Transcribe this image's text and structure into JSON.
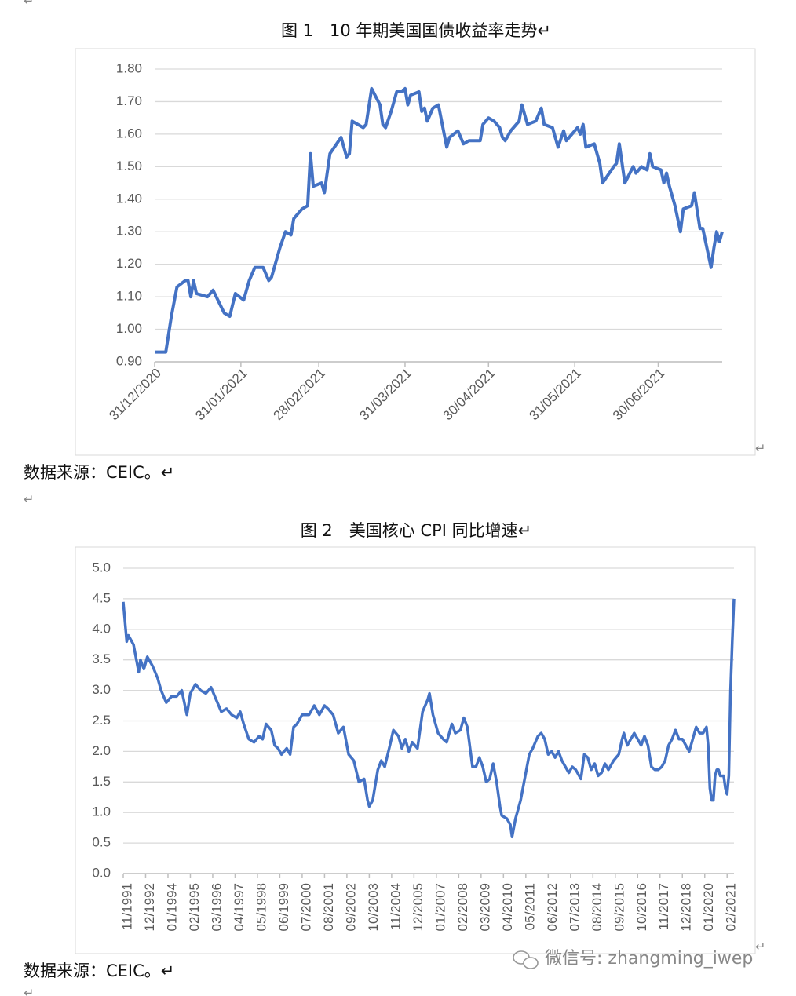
{
  "paragraph_marks": [
    "↵",
    "↵",
    "↵",
    "↵",
    "↵"
  ],
  "watermark": "微信号: zhangming_iwep",
  "chart_data": [
    {
      "type": "line",
      "title": "图 1　10 年期美国国债收益率走势↵",
      "source": "数据来源：CEIC。↵",
      "grid": true,
      "color": "#4472c4",
      "x": [
        "31/12/2020",
        "04/01/2021",
        "06/01/2021",
        "08/01/2021",
        "11/01/2021",
        "12/01/2021",
        "13/01/2021",
        "14/01/2021",
        "15/01/2021",
        "19/01/2021",
        "21/01/2021",
        "25/01/2021",
        "27/01/2021",
        "29/01/2021",
        "01/02/2021",
        "03/02/2021",
        "05/02/2021",
        "08/02/2021",
        "10/02/2021",
        "11/02/2021",
        "14/02/2021",
        "16/02/2021",
        "18/02/2021",
        "19/02/2021",
        "22/02/2021",
        "24/02/2021",
        "25/02/2021",
        "26/02/2021",
        "01/03/2021",
        "02/03/2021",
        "04/03/2021",
        "08/03/2021",
        "10/03/2021",
        "11/03/2021",
        "12/03/2021",
        "16/03/2021",
        "17/03/2021",
        "19/03/2021",
        "22/03/2021",
        "23/03/2021",
        "24/03/2021",
        "26/03/2021",
        "28/03/2021",
        "30/03/2021",
        "31/03/2021",
        "01/04/2021",
        "02/04/2021",
        "05/04/2021",
        "06/04/2021",
        "07/04/2021",
        "08/04/2021",
        "10/04/2021",
        "12/04/2021",
        "15/04/2021",
        "16/04/2021",
        "19/04/2021",
        "21/04/2021",
        "23/04/2021",
        "27/04/2021",
        "28/04/2021",
        "30/04/2021",
        "02/05/2021",
        "04/05/2021",
        "05/05/2021",
        "06/05/2021",
        "08/05/2021",
        "11/05/2021",
        "12/05/2021",
        "14/05/2021",
        "17/05/2021",
        "19/05/2021",
        "20/05/2021",
        "23/05/2021",
        "25/05/2021",
        "27/05/2021",
        "28/05/2021",
        "01/06/2021",
        "02/06/2021",
        "03/06/2021",
        "04/06/2021",
        "07/06/2021",
        "09/06/2021",
        "10/06/2021",
        "14/06/2021",
        "15/06/2021",
        "16/06/2021",
        "18/06/2021",
        "21/06/2021",
        "22/06/2021",
        "24/06/2021",
        "26/06/2021",
        "27/06/2021",
        "28/06/2021",
        "01/07/2021",
        "02/07/2021",
        "03/07/2021",
        "04/07/2021",
        "06/07/2021",
        "08/07/2021",
        "09/07/2021",
        "12/07/2021",
        "13/07/2021",
        "15/07/2021",
        "16/07/2021",
        "19/07/2021",
        "20/07/2021",
        "21/07/2021",
        "22/07/2021",
        "23/07/2021"
      ],
      "values": [
        0.93,
        0.93,
        1.04,
        1.13,
        1.15,
        1.15,
        1.1,
        1.15,
        1.11,
        1.1,
        1.12,
        1.05,
        1.04,
        1.11,
        1.09,
        1.15,
        1.19,
        1.19,
        1.15,
        1.16,
        1.25,
        1.3,
        1.29,
        1.34,
        1.37,
        1.38,
        1.54,
        1.44,
        1.45,
        1.42,
        1.54,
        1.59,
        1.53,
        1.54,
        1.64,
        1.62,
        1.63,
        1.74,
        1.69,
        1.63,
        1.62,
        1.67,
        1.73,
        1.73,
        1.74,
        1.69,
        1.72,
        1.73,
        1.67,
        1.68,
        1.64,
        1.68,
        1.69,
        1.56,
        1.59,
        1.61,
        1.57,
        1.58,
        1.58,
        1.63,
        1.65,
        1.64,
        1.62,
        1.59,
        1.58,
        1.61,
        1.64,
        1.69,
        1.63,
        1.64,
        1.68,
        1.63,
        1.62,
        1.56,
        1.61,
        1.58,
        1.62,
        1.6,
        1.63,
        1.56,
        1.57,
        1.51,
        1.45,
        1.5,
        1.51,
        1.57,
        1.45,
        1.5,
        1.48,
        1.5,
        1.49,
        1.54,
        1.5,
        1.49,
        1.45,
        1.48,
        1.44,
        1.38,
        1.3,
        1.37,
        1.38,
        1.42,
        1.31,
        1.31,
        1.19,
        1.25,
        1.3,
        1.27,
        1.3
      ],
      "xlim": [
        "31/12/2020",
        "23/07/2021"
      ],
      "xticks": [
        "31/12/2020",
        "31/01/2021",
        "28/02/2021",
        "31/03/2021",
        "30/04/2021",
        "31/05/2021",
        "30/06/2021"
      ],
      "ylim": [
        0.9,
        1.8
      ],
      "yticks": [
        {
          "value": 0.9,
          "label": "0.90"
        },
        {
          "value": 1.0,
          "label": "1.00"
        },
        {
          "value": 1.1,
          "label": "1.10"
        },
        {
          "value": 1.2,
          "label": "1.20"
        },
        {
          "value": 1.3,
          "label": "1.30"
        },
        {
          "value": 1.4,
          "label": "1.40"
        },
        {
          "value": 1.5,
          "label": "1.50"
        },
        {
          "value": 1.6,
          "label": "1.60"
        },
        {
          "value": 1.7,
          "label": "1.70"
        },
        {
          "value": 1.8,
          "label": "1.80"
        }
      ]
    },
    {
      "type": "line",
      "title": "图 2　美国核心 CPI 同比增速↵",
      "source": "数据来源：CEIC。↵",
      "grid": true,
      "color": "#4472c4",
      "x": [
        "11/1991",
        "01/1992",
        "02/1992",
        "05/1992",
        "08/1992",
        "09/1992",
        "11/1992",
        "01/1993",
        "04/1993",
        "07/1993",
        "09/1993",
        "12/1993",
        "03/1994",
        "06/1994",
        "09/1994",
        "12/1994",
        "02/1995",
        "05/1995",
        "08/1995",
        "11/1995",
        "02/1996",
        "05/1996",
        "08/1996",
        "11/1996",
        "02/1997",
        "05/1997",
        "07/1997",
        "09/1997",
        "12/1997",
        "03/1998",
        "06/1998",
        "08/1998",
        "10/1998",
        "01/1999",
        "03/1999",
        "05/1999",
        "07/1999",
        "10/1999",
        "12/1999",
        "02/2000",
        "04/2000",
        "07/2000",
        "11/2000",
        "02/2001",
        "05/2001",
        "08/2001",
        "10/2001",
        "01/2002",
        "04/2002",
        "07/2002",
        "10/2002",
        "01/2003",
        "04/2003",
        "07/2003",
        "09/2003",
        "10/2003",
        "12/2003",
        "03/2004",
        "05/2004",
        "07/2004",
        "10/2004",
        "12/2004",
        "03/2005",
        "05/2005",
        "07/2005",
        "09/2005",
        "11/2005",
        "02/2006",
        "05/2006",
        "08/2006",
        "09/2006",
        "11/2006",
        "02/2007",
        "05/2007",
        "07/2007",
        "10/2007",
        "12/2007",
        "03/2008",
        "05/2008",
        "07/2008",
        "10/2008",
        "12/2008",
        "02/2009",
        "04/2009",
        "06/2009",
        "08/2009",
        "10/2009",
        "12/2009",
        "02/2010",
        "03/2010",
        "06/2010",
        "08/2010",
        "09/2010",
        "11/2010",
        "02/2011",
        "04/2011",
        "07/2011",
        "09/2011",
        "12/2011",
        "02/2012",
        "04/2012",
        "06/2012",
        "08/2012",
        "10/2012",
        "12/2012",
        "02/2013",
        "04/2013",
        "06/2013",
        "08/2013",
        "10/2013",
        "01/2014",
        "03/2014",
        "05/2014",
        "07/2014",
        "09/2014",
        "11/2014",
        "01/2015",
        "03/2015",
        "05/2015",
        "08/2015",
        "11/2015",
        "01/2016",
        "02/2016",
        "04/2016",
        "06/2016",
        "08/2016",
        "10/2016",
        "12/2016",
        "02/2017",
        "04/2017",
        "06/2017",
        "08/2017",
        "10/2017",
        "12/2017",
        "02/2018",
        "04/2018",
        "06/2018",
        "08/2018",
        "10/2018",
        "12/2018",
        "02/2019",
        "04/2019",
        "06/2019",
        "08/2019",
        "10/2019",
        "12/2019",
        "02/2020",
        "03/2020",
        "04/2020",
        "05/2020",
        "06/2020",
        "07/2020",
        "08/2020",
        "09/2020",
        "10/2020",
        "11/2020",
        "12/2020",
        "01/2021",
        "02/2021",
        "03/2021",
        "04/2021",
        "05/2021",
        "06/2021"
      ],
      "values": [
        4.45,
        3.8,
        3.9,
        3.75,
        3.3,
        3.5,
        3.35,
        3.55,
        3.4,
        3.2,
        3.0,
        2.8,
        2.9,
        2.9,
        3.0,
        2.6,
        2.95,
        3.1,
        3.0,
        2.95,
        3.05,
        2.85,
        2.65,
        2.7,
        2.6,
        2.55,
        2.65,
        2.45,
        2.2,
        2.15,
        2.25,
        2.2,
        2.45,
        2.35,
        2.1,
        2.05,
        1.95,
        2.05,
        1.95,
        2.4,
        2.45,
        2.6,
        2.6,
        2.75,
        2.6,
        2.75,
        2.7,
        2.6,
        2.3,
        2.4,
        1.95,
        1.85,
        1.5,
        1.55,
        1.2,
        1.1,
        1.2,
        1.7,
        1.85,
        1.75,
        2.1,
        2.35,
        2.25,
        2.05,
        2.2,
        2.0,
        2.15,
        2.05,
        2.65,
        2.85,
        2.95,
        2.6,
        2.3,
        2.2,
        2.15,
        2.45,
        2.3,
        2.35,
        2.55,
        2.4,
        1.75,
        1.75,
        1.9,
        1.75,
        1.5,
        1.55,
        1.8,
        1.5,
        1.1,
        0.95,
        0.9,
        0.8,
        0.6,
        0.9,
        1.2,
        1.5,
        1.95,
        2.05,
        2.25,
        2.3,
        2.2,
        1.95,
        2.0,
        1.9,
        2.0,
        1.85,
        1.75,
        1.65,
        1.75,
        1.7,
        1.55,
        1.95,
        1.9,
        1.7,
        1.8,
        1.6,
        1.65,
        1.8,
        1.7,
        1.85,
        1.95,
        2.2,
        2.3,
        2.1,
        2.2,
        2.3,
        2.2,
        2.1,
        2.25,
        2.1,
        1.75,
        1.7,
        1.7,
        1.75,
        1.85,
        2.1,
        2.2,
        2.35,
        2.2,
        2.2,
        2.1,
        2.0,
        2.2,
        2.4,
        2.3,
        2.3,
        2.4,
        2.1,
        1.4,
        1.2,
        1.2,
        1.6,
        1.7,
        1.7,
        1.6,
        1.6,
        1.6,
        1.4,
        1.3,
        1.6,
        3.0,
        3.8,
        4.5
      ],
      "xlim": [
        "11/1991",
        "06/2021"
      ],
      "xticks": [
        "11/1991",
        "12/1992",
        "01/1994",
        "02/1995",
        "03/1996",
        "04/1997",
        "05/1998",
        "06/1999",
        "07/2000",
        "08/2001",
        "09/2002",
        "10/2003",
        "11/2004",
        "12/2005",
        "01/2007",
        "02/2008",
        "03/2009",
        "04/2010",
        "05/2011",
        "06/2012",
        "07/2013",
        "08/2014",
        "09/2015",
        "10/2016",
        "11/2017",
        "12/2018",
        "01/2020",
        "02/2021"
      ],
      "ylim": [
        0,
        5
      ],
      "yticks": [
        {
          "value": 0,
          "label": "0.0"
        },
        0.5,
        {
          "value": 1,
          "label": "1.0"
        },
        1.5,
        {
          "value": 2,
          "label": "2.0"
        },
        2.5,
        {
          "value": 3,
          "label": "3.0"
        },
        3.5,
        {
          "value": 4,
          "label": "4.0"
        },
        4.5,
        {
          "value": 5,
          "label": "5.0"
        }
      ]
    }
  ]
}
